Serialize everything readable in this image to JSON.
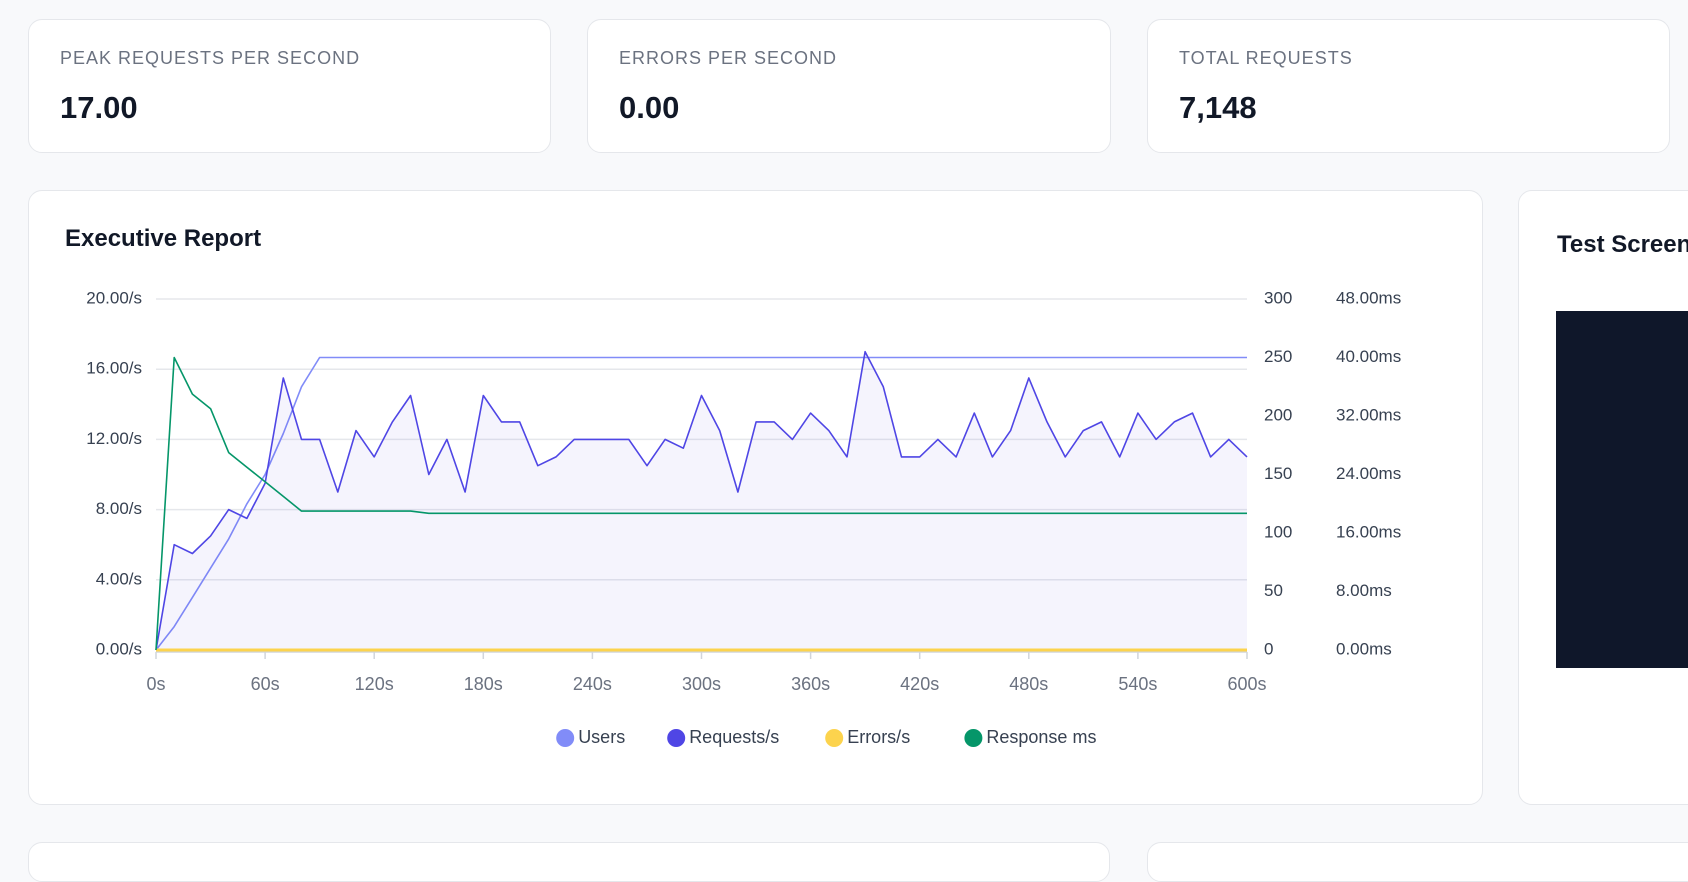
{
  "stats": [
    {
      "label": "PEAK REQUESTS PER SECOND",
      "value": "17.00"
    },
    {
      "label": "ERRORS PER SECOND",
      "value": "0.00"
    },
    {
      "label": "TOTAL REQUESTS",
      "value": "7,148"
    }
  ],
  "side_panel": {
    "title": "Test Screen"
  },
  "chart_data": {
    "type": "line",
    "title": "Executive Report",
    "x": [
      0,
      10,
      20,
      30,
      40,
      50,
      60,
      70,
      80,
      90,
      100,
      110,
      120,
      130,
      140,
      150,
      160,
      170,
      180,
      190,
      200,
      210,
      220,
      230,
      240,
      250,
      260,
      270,
      280,
      290,
      300,
      310,
      320,
      330,
      340,
      350,
      360,
      370,
      380,
      390,
      400,
      410,
      420,
      430,
      440,
      450,
      460,
      470,
      480,
      490,
      500,
      510,
      520,
      530,
      540,
      550,
      560,
      570,
      580,
      590,
      600
    ],
    "xlim": [
      0,
      600
    ],
    "xticks": [
      {
        "value": 0,
        "label": "0s"
      },
      {
        "value": 60,
        "label": "60s"
      },
      {
        "value": 120,
        "label": "120s"
      },
      {
        "value": 180,
        "label": "180s"
      },
      {
        "value": 240,
        "label": "240s"
      },
      {
        "value": 300,
        "label": "300s"
      },
      {
        "value": 360,
        "label": "360s"
      },
      {
        "value": 420,
        "label": "420s"
      },
      {
        "value": 480,
        "label": "480s"
      },
      {
        "value": 540,
        "label": "540s"
      },
      {
        "value": 600,
        "label": "600s"
      }
    ],
    "ylim": [
      0,
      20
    ],
    "yticks": [
      {
        "value": 0,
        "label": "0.00/s"
      },
      {
        "value": 4,
        "label": "4.00/s"
      },
      {
        "value": 8,
        "label": "8.00/s"
      },
      {
        "value": 12,
        "label": "12.00/s"
      },
      {
        "value": 16,
        "label": "16.00/s"
      },
      {
        "value": 20,
        "label": "20.00/s"
      }
    ],
    "y2lim": [
      0,
      300
    ],
    "y2ticks": [
      0,
      50,
      100,
      150,
      200,
      250,
      300
    ],
    "y3lim": [
      0,
      48
    ],
    "y3ticks": [
      {
        "value": 0,
        "label": "0.00ms"
      },
      {
        "value": 8,
        "label": "8.00ms"
      },
      {
        "value": 16,
        "label": "16.00ms"
      },
      {
        "value": 24,
        "label": "24.00ms"
      },
      {
        "value": 32,
        "label": "32.00ms"
      },
      {
        "value": 40,
        "label": "40.00ms"
      },
      {
        "value": 48,
        "label": "48.00ms"
      }
    ],
    "grid": true,
    "series": [
      {
        "name": "Users",
        "color": "#818cf8",
        "axis": "y2",
        "values": [
          0,
          20,
          45,
          70,
          95,
          125,
          150,
          185,
          225,
          250,
          250,
          250,
          250,
          250,
          250,
          250,
          250,
          250,
          250,
          250,
          250,
          250,
          250,
          250,
          250,
          250,
          250,
          250,
          250,
          250,
          250,
          250,
          250,
          250,
          250,
          250,
          250,
          250,
          250,
          250,
          250,
          250,
          250,
          250,
          250,
          250,
          250,
          250,
          250,
          250,
          250,
          250,
          250,
          250,
          250,
          250,
          250,
          250,
          250,
          250,
          250
        ]
      },
      {
        "name": "Requests/s",
        "color": "#4f46e5",
        "axis": "y",
        "values": [
          0,
          6,
          5.5,
          6.5,
          8,
          7.5,
          9.5,
          15.5,
          12,
          12,
          9,
          12.5,
          11,
          13,
          14.5,
          10,
          12,
          9,
          14.5,
          13,
          13,
          10.5,
          11,
          12,
          12,
          12,
          12,
          10.5,
          12,
          11.5,
          14.5,
          12.5,
          9,
          13,
          13,
          12,
          13.5,
          12.5,
          11,
          17,
          15,
          11,
          11,
          12,
          11,
          13.5,
          11,
          12.5,
          15.5,
          13,
          11,
          12.5,
          13,
          11,
          13.5,
          12,
          13,
          13.5,
          11,
          12,
          11
        ]
      },
      {
        "name": "Errors/s",
        "color": "#fcd34d",
        "axis": "y",
        "values": [
          0,
          0,
          0,
          0,
          0,
          0,
          0,
          0,
          0,
          0,
          0,
          0,
          0,
          0,
          0,
          0,
          0,
          0,
          0,
          0,
          0,
          0,
          0,
          0,
          0,
          0,
          0,
          0,
          0,
          0,
          0,
          0,
          0,
          0,
          0,
          0,
          0,
          0,
          0,
          0,
          0,
          0,
          0,
          0,
          0,
          0,
          0,
          0,
          0,
          0,
          0,
          0,
          0,
          0,
          0,
          0,
          0,
          0,
          0,
          0,
          0
        ]
      },
      {
        "name": "Response ms",
        "color": "#059669",
        "axis": "y3",
        "values": [
          0,
          40,
          35,
          33,
          27,
          25,
          23,
          21,
          19,
          19,
          19,
          19,
          19,
          19,
          19,
          18.7,
          18.7,
          18.7,
          18.7,
          18.7,
          18.7,
          18.7,
          18.7,
          18.7,
          18.7,
          18.7,
          18.7,
          18.7,
          18.7,
          18.7,
          18.7,
          18.7,
          18.7,
          18.7,
          18.7,
          18.7,
          18.7,
          18.7,
          18.7,
          18.7,
          18.7,
          18.7,
          18.7,
          18.7,
          18.7,
          18.7,
          18.7,
          18.7,
          18.7,
          18.7,
          18.7,
          18.7,
          18.7,
          18.7,
          18.7,
          18.7,
          18.7,
          18.7,
          18.7,
          18.7,
          18.7
        ]
      }
    ]
  }
}
